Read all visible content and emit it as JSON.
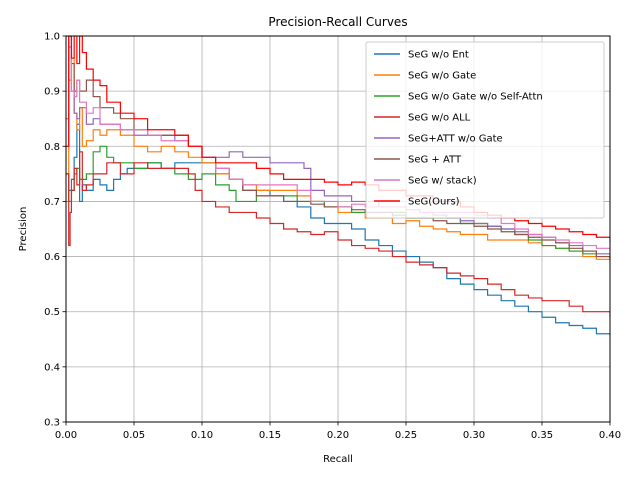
{
  "chart_data": {
    "type": "line",
    "title": "Precision-Recall Curves",
    "xlabel": "Recall",
    "ylabel": "Precision",
    "xlim": [
      0.0,
      0.4
    ],
    "ylim": [
      0.3,
      1.0
    ],
    "xticks": [
      "0.00",
      "0.05",
      "0.10",
      "0.15",
      "0.20",
      "0.25",
      "0.30",
      "0.35",
      "0.40"
    ],
    "yticks": [
      "0.3",
      "0.4",
      "0.5",
      "0.6",
      "0.7",
      "0.8",
      "0.9",
      "1.0"
    ],
    "grid": true,
    "legend_position": "top-right",
    "series": [
      {
        "name": "SeG w/o Ent",
        "color": "#1f77b4",
        "x": [
          0.0,
          0.002,
          0.004,
          0.006,
          0.008,
          0.01,
          0.012,
          0.015,
          0.02,
          0.025,
          0.03,
          0.035,
          0.04,
          0.045,
          0.05,
          0.055,
          0.06,
          0.07,
          0.08,
          0.09,
          0.1,
          0.11,
          0.12,
          0.13,
          0.14,
          0.15,
          0.16,
          0.17,
          0.18,
          0.19,
          0.2,
          0.21,
          0.22,
          0.23,
          0.24,
          0.25,
          0.26,
          0.27,
          0.28,
          0.29,
          0.3,
          0.31,
          0.32,
          0.33,
          0.34,
          0.35,
          0.36,
          0.37,
          0.38,
          0.39,
          0.4
        ],
        "y": [
          0.75,
          0.72,
          0.74,
          0.78,
          0.84,
          0.7,
          0.73,
          0.72,
          0.74,
          0.73,
          0.72,
          0.74,
          0.75,
          0.76,
          0.76,
          0.76,
          0.77,
          0.76,
          0.77,
          0.77,
          0.77,
          0.75,
          0.74,
          0.72,
          0.72,
          0.71,
          0.7,
          0.69,
          0.67,
          0.66,
          0.66,
          0.65,
          0.63,
          0.62,
          0.61,
          0.6,
          0.59,
          0.58,
          0.56,
          0.55,
          0.54,
          0.53,
          0.52,
          0.51,
          0.5,
          0.49,
          0.48,
          0.475,
          0.47,
          0.46,
          0.455
        ]
      },
      {
        "name": "SeG w/o Gate",
        "color": "#ff7f0e",
        "x": [
          0.0,
          0.002,
          0.004,
          0.006,
          0.008,
          0.01,
          0.012,
          0.015,
          0.02,
          0.025,
          0.03,
          0.04,
          0.05,
          0.06,
          0.07,
          0.08,
          0.09,
          0.1,
          0.11,
          0.12,
          0.13,
          0.14,
          0.15,
          0.16,
          0.17,
          0.18,
          0.19,
          0.2,
          0.21,
          0.22,
          0.23,
          0.24,
          0.25,
          0.26,
          0.27,
          0.28,
          0.29,
          0.3,
          0.31,
          0.32,
          0.33,
          0.34,
          0.35,
          0.36,
          0.37,
          0.38,
          0.39,
          0.4
        ],
        "y": [
          0.7,
          0.92,
          0.96,
          0.86,
          0.83,
          0.87,
          0.8,
          0.81,
          0.83,
          0.82,
          0.83,
          0.82,
          0.8,
          0.79,
          0.8,
          0.79,
          0.78,
          0.77,
          0.75,
          0.74,
          0.73,
          0.72,
          0.72,
          0.72,
          0.71,
          0.7,
          0.69,
          0.68,
          0.68,
          0.67,
          0.67,
          0.66,
          0.665,
          0.655,
          0.65,
          0.645,
          0.64,
          0.64,
          0.63,
          0.63,
          0.63,
          0.625,
          0.62,
          0.615,
          0.61,
          0.6,
          0.595,
          0.59
        ]
      },
      {
        "name": "SeG w/o Gate w/o Self-Attn",
        "color": "#2ca02c",
        "x": [
          0.0,
          0.002,
          0.004,
          0.006,
          0.008,
          0.01,
          0.015,
          0.02,
          0.025,
          0.03,
          0.035,
          0.04,
          0.05,
          0.06,
          0.07,
          0.08,
          0.09,
          0.1,
          0.11,
          0.12,
          0.125,
          0.13,
          0.14,
          0.15,
          0.16,
          0.17,
          0.18,
          0.19,
          0.2,
          0.21,
          0.22,
          0.23,
          0.24,
          0.25,
          0.26,
          0.27,
          0.28,
          0.29,
          0.3,
          0.31,
          0.32,
          0.33,
          0.34,
          0.35,
          0.36,
          0.37,
          0.38,
          0.39,
          0.4
        ],
        "y": [
          0.75,
          0.7,
          0.72,
          0.75,
          0.76,
          0.74,
          0.75,
          0.79,
          0.8,
          0.78,
          0.77,
          0.77,
          0.76,
          0.77,
          0.76,
          0.75,
          0.74,
          0.75,
          0.73,
          0.72,
          0.7,
          0.7,
          0.71,
          0.71,
          0.71,
          0.7,
          0.7,
          0.69,
          0.69,
          0.68,
          0.68,
          0.68,
          0.68,
          0.67,
          0.67,
          0.67,
          0.67,
          0.66,
          0.66,
          0.655,
          0.65,
          0.64,
          0.63,
          0.62,
          0.615,
          0.61,
          0.605,
          0.6,
          0.595
        ]
      },
      {
        "name": "SeG w/o ALL",
        "color": "#d62728",
        "x": [
          0.0,
          0.002,
          0.003,
          0.004,
          0.006,
          0.008,
          0.01,
          0.012,
          0.015,
          0.02,
          0.03,
          0.04,
          0.05,
          0.06,
          0.07,
          0.08,
          0.09,
          0.095,
          0.1,
          0.11,
          0.12,
          0.13,
          0.14,
          0.15,
          0.16,
          0.17,
          0.18,
          0.19,
          0.2,
          0.21,
          0.22,
          0.23,
          0.24,
          0.25,
          0.26,
          0.27,
          0.28,
          0.29,
          0.3,
          0.31,
          0.32,
          0.33,
          0.34,
          0.35,
          0.36,
          0.37,
          0.38,
          0.39,
          0.4
        ],
        "y": [
          0.75,
          0.62,
          0.68,
          0.72,
          0.76,
          0.73,
          0.79,
          0.72,
          0.73,
          0.75,
          0.77,
          0.75,
          0.77,
          0.76,
          0.76,
          0.76,
          0.75,
          0.72,
          0.7,
          0.69,
          0.68,
          0.68,
          0.67,
          0.66,
          0.65,
          0.645,
          0.64,
          0.645,
          0.63,
          0.62,
          0.615,
          0.61,
          0.6,
          0.59,
          0.585,
          0.58,
          0.57,
          0.565,
          0.56,
          0.55,
          0.54,
          0.53,
          0.525,
          0.52,
          0.52,
          0.51,
          0.5,
          0.5,
          0.49
        ]
      },
      {
        "name": "SeG+ATT w/o Gate",
        "color": "#9467bd",
        "x": [
          0.0,
          0.002,
          0.004,
          0.006,
          0.008,
          0.01,
          0.015,
          0.02,
          0.025,
          0.03,
          0.04,
          0.05,
          0.06,
          0.07,
          0.08,
          0.09,
          0.1,
          0.11,
          0.12,
          0.13,
          0.14,
          0.15,
          0.16,
          0.17,
          0.175,
          0.18,
          0.19,
          0.2,
          0.21,
          0.22,
          0.23,
          0.24,
          0.25,
          0.26,
          0.27,
          0.28,
          0.29,
          0.3,
          0.31,
          0.32,
          0.33,
          0.34,
          0.35,
          0.36,
          0.37,
          0.38,
          0.39,
          0.4
        ],
        "y": [
          0.8,
          0.98,
          0.9,
          0.86,
          0.85,
          0.87,
          0.84,
          0.85,
          0.84,
          0.84,
          0.83,
          0.82,
          0.82,
          0.82,
          0.81,
          0.8,
          0.78,
          0.78,
          0.79,
          0.78,
          0.78,
          0.77,
          0.77,
          0.77,
          0.76,
          0.72,
          0.71,
          0.71,
          0.7,
          0.7,
          0.69,
          0.69,
          0.685,
          0.68,
          0.675,
          0.67,
          0.665,
          0.66,
          0.655,
          0.65,
          0.645,
          0.64,
          0.635,
          0.625,
          0.62,
          0.61,
          0.605,
          0.6
        ]
      },
      {
        "name": "SeG + ATT",
        "color": "#8c564b",
        "x": [
          0.0,
          0.002,
          0.004,
          0.006,
          0.008,
          0.01,
          0.015,
          0.02,
          0.025,
          0.03,
          0.035,
          0.04,
          0.05,
          0.06,
          0.07,
          0.08,
          0.09,
          0.1,
          0.11,
          0.12,
          0.13,
          0.14,
          0.15,
          0.16,
          0.17,
          0.18,
          0.19,
          0.2,
          0.21,
          0.22,
          0.23,
          0.24,
          0.25,
          0.26,
          0.27,
          0.28,
          0.29,
          0.3,
          0.31,
          0.32,
          0.33,
          0.34,
          0.35,
          0.36,
          0.37,
          0.38,
          0.39,
          0.4
        ],
        "y": [
          0.85,
          1.0,
          0.95,
          0.9,
          0.92,
          0.9,
          0.92,
          0.89,
          0.87,
          0.87,
          0.86,
          0.85,
          0.83,
          0.82,
          0.82,
          0.82,
          0.8,
          0.78,
          0.76,
          0.74,
          0.72,
          0.71,
          0.71,
          0.7,
          0.7,
          0.695,
          0.69,
          0.69,
          0.685,
          0.68,
          0.68,
          0.675,
          0.67,
          0.67,
          0.665,
          0.66,
          0.66,
          0.655,
          0.65,
          0.645,
          0.64,
          0.635,
          0.63,
          0.625,
          0.615,
          0.61,
          0.6,
          0.595
        ]
      },
      {
        "name": "SeG w/ stack)",
        "color": "#e377c2",
        "x": [
          0.0,
          0.002,
          0.004,
          0.006,
          0.008,
          0.01,
          0.015,
          0.02,
          0.025,
          0.03,
          0.04,
          0.05,
          0.06,
          0.07,
          0.08,
          0.09,
          0.1,
          0.11,
          0.12,
          0.13,
          0.14,
          0.15,
          0.16,
          0.17,
          0.18,
          0.19,
          0.2,
          0.21,
          0.22,
          0.23,
          0.24,
          0.25,
          0.26,
          0.27,
          0.28,
          0.29,
          0.3,
          0.31,
          0.32,
          0.33,
          0.34,
          0.35,
          0.36,
          0.37,
          0.38,
          0.39,
          0.4
        ],
        "y": [
          0.85,
          1.0,
          0.9,
          0.89,
          0.92,
          0.88,
          0.86,
          0.87,
          0.84,
          0.84,
          0.83,
          0.83,
          0.82,
          0.81,
          0.81,
          0.8,
          0.78,
          0.76,
          0.74,
          0.73,
          0.73,
          0.73,
          0.73,
          0.72,
          0.7,
          0.7,
          0.69,
          0.695,
          0.69,
          0.69,
          0.69,
          0.685,
          0.68,
          0.68,
          0.68,
          0.68,
          0.675,
          0.67,
          0.66,
          0.65,
          0.64,
          0.635,
          0.63,
          0.625,
          0.62,
          0.615,
          0.61
        ]
      },
      {
        "name": "SeG(Ours)",
        "color": "#ff0000",
        "x": [
          0.0,
          0.002,
          0.004,
          0.006,
          0.008,
          0.01,
          0.012,
          0.015,
          0.02,
          0.025,
          0.03,
          0.04,
          0.05,
          0.06,
          0.07,
          0.08,
          0.09,
          0.1,
          0.11,
          0.12,
          0.13,
          0.14,
          0.15,
          0.16,
          0.17,
          0.18,
          0.19,
          0.2,
          0.21,
          0.22,
          0.23,
          0.24,
          0.25,
          0.26,
          0.27,
          0.28,
          0.29,
          0.3,
          0.31,
          0.32,
          0.33,
          0.34,
          0.35,
          0.36,
          0.37,
          0.38,
          0.39,
          0.4
        ],
        "y": [
          0.8,
          1.0,
          0.96,
          1.0,
          0.95,
          1.0,
          0.97,
          0.94,
          0.92,
          0.91,
          0.88,
          0.86,
          0.85,
          0.83,
          0.83,
          0.82,
          0.8,
          0.78,
          0.77,
          0.77,
          0.77,
          0.76,
          0.75,
          0.74,
          0.74,
          0.74,
          0.735,
          0.73,
          0.735,
          0.73,
          0.72,
          0.72,
          0.71,
          0.71,
          0.7,
          0.7,
          0.69,
          0.68,
          0.675,
          0.67,
          0.665,
          0.66,
          0.655,
          0.65,
          0.645,
          0.64,
          0.635,
          0.625
        ]
      }
    ]
  }
}
